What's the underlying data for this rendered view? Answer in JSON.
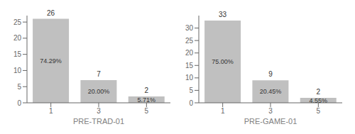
{
  "chart_data": [
    {
      "type": "bar",
      "xlabel": "PRE-TRAD-01",
      "categories": [
        "1",
        "3",
        "5"
      ],
      "values": [
        26,
        7,
        2
      ],
      "percentages": [
        "74.29%",
        "20.00%",
        "5.71%"
      ],
      "color": "#c0c0c0",
      "ylim": [
        0,
        27
      ],
      "yticks": [
        0,
        5,
        10,
        15,
        20,
        25
      ],
      "grid": false,
      "data_labels": true
    },
    {
      "type": "bar",
      "xlabel": "PRE-GAME-01",
      "categories": [
        "1",
        "3",
        "5"
      ],
      "values": [
        33,
        9,
        2
      ],
      "percentages": [
        "75.00%",
        "20.45%",
        "4.55%"
      ],
      "color": "#c0c0c0",
      "ylim": [
        0,
        35
      ],
      "yticks": [
        0,
        5,
        10,
        15,
        20,
        25,
        30
      ],
      "grid": false,
      "data_labels": true
    }
  ]
}
